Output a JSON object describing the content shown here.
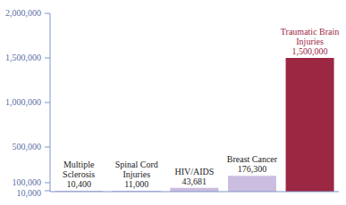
{
  "chart_data": {
    "type": "bar",
    "categories": [
      "Multiple Sclerosis",
      "Spinal Cord Injuries",
      "HIV/AIDS",
      "Breast Cancer",
      "Traumatic Brain Injuries"
    ],
    "values": [
      10400,
      11000,
      43681,
      176300,
      1500000
    ],
    "value_labels": [
      "10,400",
      "11,000",
      "43,681",
      "176,300",
      "1,500,000"
    ],
    "colors": [
      "#cbbde0",
      "#cbbde0",
      "#cbbde0",
      "#cbbde0",
      "#9b2743"
    ],
    "ylim": [
      0,
      2000000
    ],
    "yticks": [
      {
        "value": 10000,
        "label": "10,000"
      },
      {
        "value": 100000,
        "label": "100,000"
      },
      {
        "value": 500000,
        "label": "500,000"
      },
      {
        "value": 1000000,
        "label": "1,000,000"
      },
      {
        "value": 1500000,
        "label": "1,500,000"
      },
      {
        "value": 2000000,
        "label": "2,000,000"
      }
    ],
    "data_labels": true,
    "tick_labels": "y",
    "grid": false
  }
}
